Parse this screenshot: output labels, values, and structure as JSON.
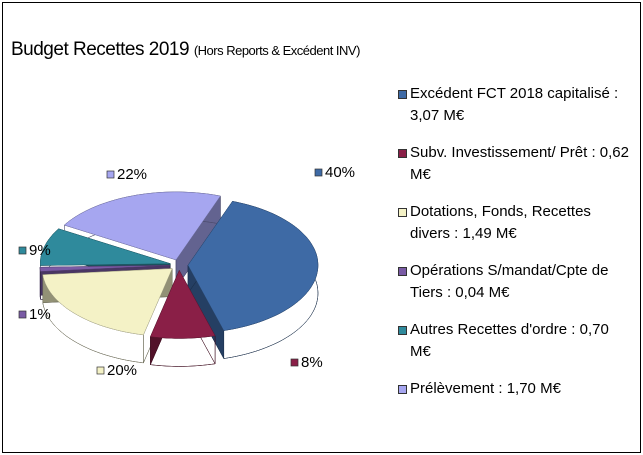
{
  "chart_data": {
    "type": "pie3d",
    "title": "Budget  Recettes 2019",
    "subtitle": "(Hors Reports & Excédent INV)",
    "categories": [
      "Excédent FCT 2018 capitalisé : 3,07 M€",
      "Subv. Investissement/ Prêt : 0,62 M€",
      "Dotations, Fonds, Recettes divers : 1,49 M€",
      "Opérations S/mandat/Cpte de Tiers : 0,04 M€",
      "Autres Recettes d'ordre : 0,70 M€",
      "Prélèvement : 1,70 M€"
    ],
    "values": [
      40,
      8,
      20,
      1,
      9,
      22
    ],
    "value_labels": [
      "40%",
      "8%",
      "20%",
      "1%",
      "9%",
      "22%"
    ],
    "colors": [
      "#3e6aa5",
      "#8a1f47",
      "#f4f2c6",
      "#7a5ba5",
      "#2f8a9c",
      "#a6a6f0"
    ],
    "legend": "right"
  }
}
